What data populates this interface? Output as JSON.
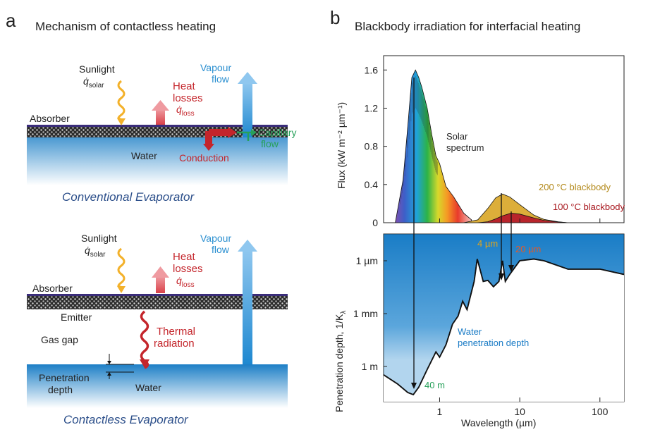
{
  "panel_a": {
    "letter": "a",
    "title": "Mechanism of contactless heating",
    "top": {
      "sunlight": "Sunlight",
      "q_solar": "q̇",
      "q_solar_sub": "solar",
      "heat_losses_1": "Heat",
      "heat_losses_2": "losses",
      "q_loss": "q̇",
      "q_loss_sub": "loss",
      "vapour_1": "Vapour",
      "vapour_2": "flow",
      "absorber": "Absorber",
      "capillary_1": "Capillary",
      "capillary_2": "flow",
      "water": "Water",
      "conduction": "Conduction",
      "caption": "Conventional Evaporator"
    },
    "bottom": {
      "sunlight": "Sunlight",
      "q_solar": "q̇",
      "q_solar_sub": "solar",
      "heat_losses_1": "Heat",
      "heat_losses_2": "losses",
      "q_loss": "q̇",
      "q_loss_sub": "loss",
      "vapour_1": "Vapour",
      "vapour_2": "flow",
      "absorber": "Absorber",
      "emitter": "Emitter",
      "thermal_1": "Thermal",
      "thermal_2": "radiation",
      "gas_gap": "Gas gap",
      "penetration_1": "Penetration",
      "penetration_2": "depth",
      "water": "Water",
      "caption": "Contactless Evaporator"
    }
  },
  "panel_b": {
    "letter": "b",
    "title": "Blackbody irradiation for interfacial heating",
    "flux_ylabel": "Flux (kW m⁻² µm⁻¹)",
    "flux_ticks": [
      "1.6",
      "1.2",
      "0.8",
      "0.4",
      "0"
    ],
    "solar_1": "Solar",
    "solar_2": "spectrum",
    "bb200": "200 °C blackbody",
    "bb100": "100 °C blackbody",
    "pen_ylabel": "Penetration depth, 1/K",
    "pen_ylabel_sub": "λ",
    "pen_ticks": [
      "1 µm",
      "1 mm",
      "1 m"
    ],
    "label_4um": "4 µm",
    "label_20um": "20 µm",
    "water_1": "Water",
    "water_2": "penetration depth",
    "label_40m": "40 m",
    "x_ticks": [
      "1",
      "10",
      "100"
    ],
    "xlabel": "Wavelength (µm)"
  },
  "chart_data": [
    {
      "type": "area",
      "title": "Blackbody irradiation for interfacial heating",
      "xlabel": "Wavelength (µm)",
      "ylabel": "Flux (kW m⁻² µm⁻¹)",
      "xscale": "log",
      "xlim": [
        0.2,
        200
      ],
      "ylim": [
        0,
        1.75
      ],
      "series": [
        {
          "name": "Solar spectrum",
          "x": [
            0.28,
            0.35,
            0.4,
            0.45,
            0.5,
            0.55,
            0.6,
            0.7,
            0.8,
            0.9,
            1.0,
            1.2,
            1.5,
            2.0,
            2.5
          ],
          "y": [
            0.0,
            0.45,
            1.0,
            1.52,
            1.6,
            1.52,
            1.42,
            1.2,
            0.92,
            0.7,
            0.62,
            0.38,
            0.27,
            0.1,
            0.03
          ]
        },
        {
          "name": "200 °C blackbody",
          "x": [
            2.0,
            3.0,
            4.0,
            5.0,
            6.1,
            7.5,
            10,
            15,
            20,
            30,
            40
          ],
          "y": [
            0.0,
            0.03,
            0.15,
            0.26,
            0.3,
            0.27,
            0.19,
            0.08,
            0.035,
            0.01,
            0.0
          ]
        },
        {
          "name": "100 °C blackbody",
          "x": [
            3.0,
            4.0,
            5.0,
            6.0,
            7.8,
            10,
            15,
            20,
            30,
            40
          ],
          "y": [
            0.0,
            0.01,
            0.04,
            0.07,
            0.1,
            0.09,
            0.05,
            0.025,
            0.008,
            0.0
          ]
        }
      ]
    },
    {
      "type": "line",
      "xlabel": "Wavelength (µm)",
      "ylabel": "Penetration depth, 1/Kλ",
      "xscale": "log",
      "yscale": "log",
      "xlim": [
        0.2,
        200
      ],
      "series": [
        {
          "name": "Water penetration depth",
          "x": [
            0.2,
            0.3,
            0.4,
            0.47,
            0.55,
            0.7,
            0.9,
            1.0,
            1.2,
            1.45,
            1.7,
            1.94,
            2.2,
            2.7,
            2.95,
            3.5,
            4.0,
            4.7,
            5.5,
            6.1,
            6.6,
            7.5,
            10,
            15,
            20,
            40,
            100,
            200
          ],
          "y_m": [
            3,
            10,
            30,
            40,
            15,
            1.5,
            0.15,
            0.3,
            0.06,
            0.004,
            0.0014,
            0.0002,
            0.0006,
            1.5e-05,
            8e-07,
            1.5e-05,
            1.3e-05,
            3e-05,
            1.5e-05,
            1e-06,
            1.5e-05,
            6e-06,
            1e-06,
            8e-07,
            1e-06,
            3e-06,
            3e-06,
            6e-06
          ]
        }
      ],
      "annotations": [
        "4 µm",
        "20 µm",
        "40 m",
        "Water penetration depth"
      ]
    }
  ]
}
